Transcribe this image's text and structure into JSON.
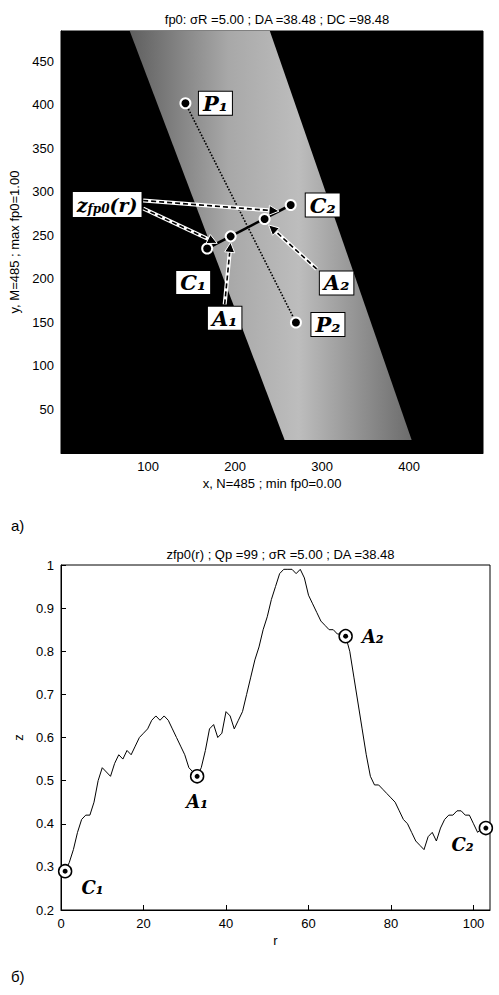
{
  "chart_data": [
    {
      "type": "image",
      "panel": "а)",
      "title": "fp0: σR =5.00 ; DA =38.48 ; DC =98.48",
      "x_label": "x, N=485 ; min fp0=0.00",
      "y_label": "y, M=485 ; max fp0=1.00",
      "xlim": [
        0,
        485
      ],
      "ylim": [
        0,
        485
      ],
      "xticks": [
        100,
        200,
        300,
        400
      ],
      "yticks": [
        50,
        100,
        150,
        200,
        250,
        300,
        350,
        400,
        450
      ],
      "band": [
        [
          79,
          485
        ],
        [
          240,
          485
        ],
        [
          403,
          15
        ],
        [
          257,
          15
        ]
      ],
      "points": [
        {
          "label": "P₁",
          "x": 143,
          "y": 402
        },
        {
          "label": "P₂",
          "x": 270,
          "y": 150
        },
        {
          "label": "C₁",
          "x": 168,
          "y": 235
        },
        {
          "label": "C₂",
          "x": 264,
          "y": 285
        },
        {
          "label": "A₁",
          "x": 195,
          "y": 249
        },
        {
          "label": "A₂",
          "x": 234,
          "y": 269
        }
      ],
      "segments": [
        {
          "from": "P₁",
          "to": "P₂",
          "line_style": "dotted"
        },
        {
          "from": "C₁",
          "to": "C₂",
          "line_style": "solid"
        }
      ],
      "annotation": {
        "text": "z",
        "sub": "fp0",
        "tail": "(r)"
      }
    },
    {
      "type": "line",
      "panel": "б)",
      "title": "zfp0(r) ; Qp =99 ; σR =5.00 ; DA =38.48",
      "x_label": "r",
      "y_label": "z",
      "xlim": [
        0,
        104
      ],
      "ylim": [
        0.2,
        1
      ],
      "xticks": [
        0,
        20,
        40,
        60,
        80,
        100
      ],
      "yticks": [
        0.2,
        0.3,
        0.4,
        0.5,
        0.6,
        0.7,
        0.8,
        0.9,
        1
      ],
      "color": "#000000",
      "x": [
        1,
        2,
        3,
        4,
        5,
        6,
        7,
        8,
        9,
        10,
        11,
        12,
        13,
        14,
        15,
        16,
        17,
        18,
        19,
        20,
        21,
        22,
        23,
        24,
        25,
        26,
        27,
        28,
        29,
        30,
        31,
        32,
        33,
        34,
        35,
        36,
        37,
        38,
        39,
        40,
        41,
        42,
        43,
        44,
        45,
        46,
        47,
        48,
        49,
        50,
        51,
        52,
        53,
        54,
        55,
        56,
        57,
        58,
        59,
        60,
        61,
        62,
        63,
        64,
        65,
        66,
        67,
        68,
        69,
        70,
        71,
        72,
        73,
        74,
        75,
        76,
        77,
        78,
        79,
        80,
        81,
        82,
        83,
        84,
        85,
        86,
        87,
        88,
        89,
        90,
        91,
        92,
        93,
        94,
        95,
        96,
        97,
        98,
        99,
        100,
        101,
        102,
        103
      ],
      "values": [
        0.29,
        0.31,
        0.34,
        0.38,
        0.41,
        0.42,
        0.42,
        0.45,
        0.5,
        0.53,
        0.52,
        0.51,
        0.54,
        0.56,
        0.55,
        0.57,
        0.56,
        0.58,
        0.6,
        0.61,
        0.62,
        0.64,
        0.65,
        0.64,
        0.65,
        0.64,
        0.62,
        0.6,
        0.58,
        0.56,
        0.53,
        0.52,
        0.51,
        0.53,
        0.57,
        0.62,
        0.63,
        0.6,
        0.61,
        0.66,
        0.65,
        0.62,
        0.64,
        0.66,
        0.7,
        0.74,
        0.78,
        0.81,
        0.85,
        0.88,
        0.92,
        0.95,
        0.98,
        0.99,
        0.99,
        0.99,
        0.98,
        0.99,
        0.97,
        0.93,
        0.91,
        0.89,
        0.87,
        0.86,
        0.85,
        0.85,
        0.84,
        0.84,
        0.835,
        0.8,
        0.74,
        0.68,
        0.62,
        0.56,
        0.51,
        0.49,
        0.49,
        0.48,
        0.47,
        0.46,
        0.45,
        0.43,
        0.41,
        0.4,
        0.38,
        0.36,
        0.35,
        0.34,
        0.37,
        0.38,
        0.36,
        0.39,
        0.41,
        0.42,
        0.42,
        0.43,
        0.43,
        0.42,
        0.42,
        0.4,
        0.38,
        0.39,
        0.39
      ],
      "markers": [
        {
          "label": "C₁",
          "x": 1,
          "y": 0.29
        },
        {
          "label": "A₁",
          "x": 33,
          "y": 0.51
        },
        {
          "label": "A₂",
          "x": 69,
          "y": 0.835
        },
        {
          "label": "C₂",
          "x": 103,
          "y": 0.39
        }
      ]
    }
  ]
}
